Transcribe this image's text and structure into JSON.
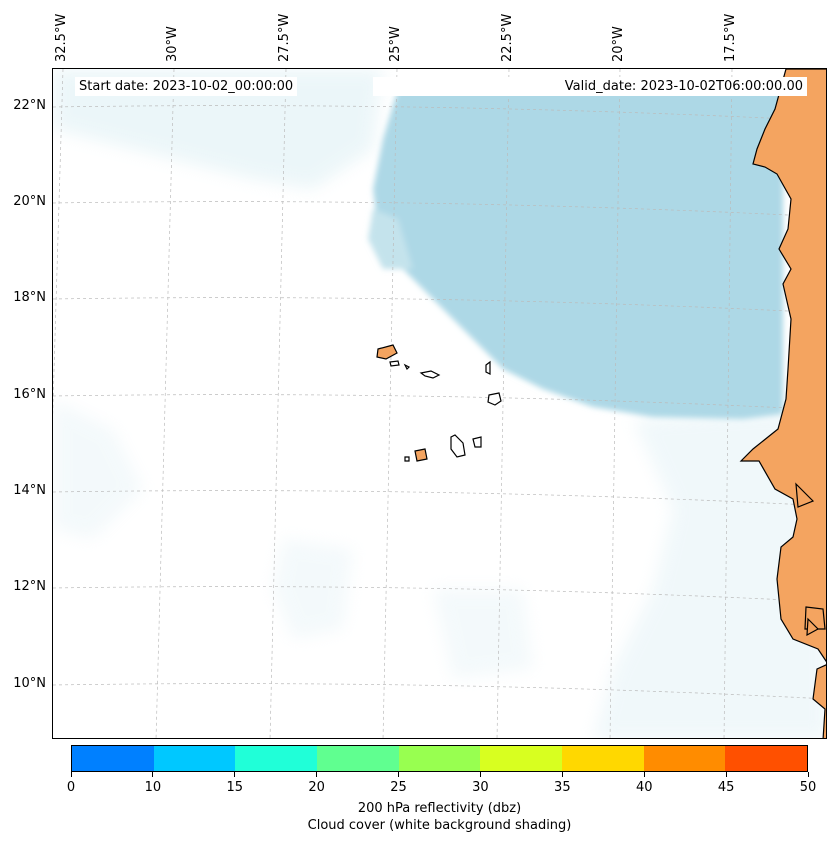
{
  "map": {
    "start_date": "Start date: 2023-10-02_00:00:00",
    "valid_date": "Valid_date: 2023-10-02T06:00:00.00",
    "lon_labels": [
      "32.5°W",
      "30°W",
      "27.5°W",
      "25°W",
      "22.5°W",
      "20°W",
      "17.5°W"
    ],
    "lat_labels": [
      "22°N",
      "20°N",
      "18°N",
      "16°N",
      "14°N",
      "12°N",
      "10°N"
    ],
    "extent": {
      "lon_min": -32.5,
      "lon_max": -15.5,
      "lat_min": 9,
      "lat_max": 22.8
    },
    "land_color": "#f4a460",
    "cloud_color": "#add8e6",
    "grid": true
  },
  "colorbar": {
    "ticks": [
      "0",
      "10",
      "15",
      "20",
      "25",
      "30",
      "35",
      "40",
      "45",
      "50"
    ],
    "colors": [
      "#0080ff",
      "#00c8ff",
      "#20ffd8",
      "#60ff90",
      "#98ff50",
      "#d8ff20",
      "#ffd800",
      "#ff8c00",
      "#ff5000"
    ],
    "label_line1": "200 hPa reflectivity (dbz)",
    "label_line2": "Cloud cover (white background shading)"
  }
}
